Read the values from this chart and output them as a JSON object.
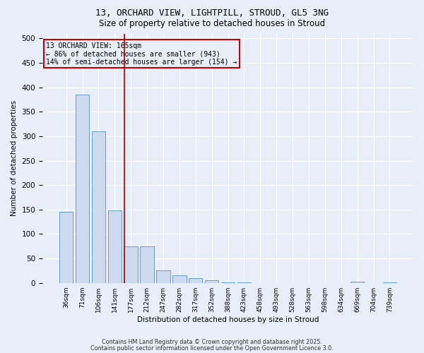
{
  "title_line1": "13, ORCHARD VIEW, LIGHTPILL, STROUD, GL5 3NG",
  "title_line2": "Size of property relative to detached houses in Stroud",
  "xlabel": "Distribution of detached houses by size in Stroud",
  "ylabel": "Number of detached properties",
  "bar_color": "#ccd9ee",
  "bar_edge_color": "#6a9cc8",
  "bar_heights": [
    145,
    385,
    310,
    148,
    75,
    75,
    25,
    15,
    10,
    5,
    1,
    1,
    0,
    0,
    0,
    0,
    0,
    0,
    2,
    0,
    1
  ],
  "bin_labels": [
    "36sqm",
    "71sqm",
    "106sqm",
    "141sqm",
    "177sqm",
    "212sqm",
    "247sqm",
    "282sqm",
    "317sqm",
    "352sqm",
    "388sqm",
    "423sqm",
    "458sqm",
    "493sqm",
    "528sqm",
    "563sqm",
    "598sqm",
    "634sqm",
    "669sqm",
    "704sqm",
    "739sqm"
  ],
  "vline_x": 3.62,
  "vline_color": "#aa0000",
  "annotation_text": "13 ORCHARD VIEW: 165sqm\n← 86% of detached houses are smaller (943)\n14% of semi-detached houses are larger (154) →",
  "box_edge_color": "#cc0000",
  "ylim": [
    0,
    510
  ],
  "yticks": [
    0,
    50,
    100,
    150,
    200,
    250,
    300,
    350,
    400,
    450,
    500
  ],
  "footer_line1": "Contains HM Land Registry data © Crown copyright and database right 2025.",
  "footer_line2": "Contains public sector information licensed under the Open Government Licence 3.0.",
  "bg_color": "#e8eef8"
}
